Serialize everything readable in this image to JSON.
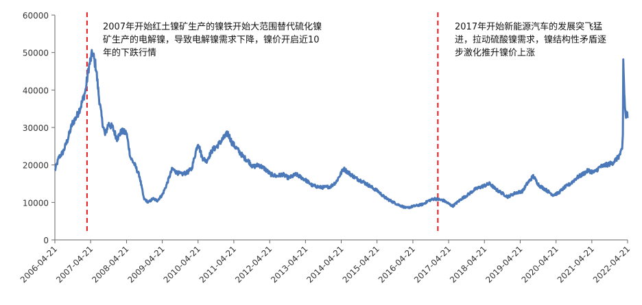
{
  "chart_data": {
    "type": "line",
    "title": "",
    "xlabel": "",
    "ylabel": "",
    "ylim": [
      0,
      60000
    ],
    "y_ticks": [
      "0",
      "10000",
      "20000",
      "30000",
      "40000",
      "50000",
      "60000"
    ],
    "x_ticks": [
      "2006-04-21",
      "2007-04-21",
      "2008-04-21",
      "2009-04-21",
      "2010-04-21",
      "2011-04-21",
      "2012-04-21",
      "2013-04-21",
      "2014-04-21",
      "2015-04-21",
      "2016-04-21",
      "2017-04-21",
      "2018-04-21",
      "2019-04-21",
      "2020-04-21",
      "2021-04-21",
      "2022-04-21"
    ],
    "grid": false,
    "series_color": "#4a78b8",
    "vline_color": "#e8141c",
    "vlines": [
      "2007-03-15",
      "2017-01-01"
    ],
    "annotations": [
      "2007年开始红土镍矿生产的镍铁开始大范围替代硫化镍矿生产的电解镍，导致电解镍需求下降，镍价开启近10年的下跌行情",
      "2017年开始新能源汽车的发展突飞猛进，拉动硫酸镍需求，镍结构性矛盾逐步激化推升镍价上涨"
    ],
    "series": [
      {
        "x": [
          "2006-04-21",
          "2006-06-01",
          "2006-07-15",
          "2006-09-01",
          "2006-10-15",
          "2006-12-01",
          "2007-01-15",
          "2007-03-01",
          "2007-04-01",
          "2007-05-10",
          "2007-06-15",
          "2007-07-15",
          "2007-08-15",
          "2007-09-15",
          "2007-10-20",
          "2007-12-01",
          "2008-01-15",
          "2008-03-01",
          "2008-04-21",
          "2008-06-01",
          "2008-07-15",
          "2008-09-01",
          "2008-10-15",
          "2008-12-01",
          "2009-01-15",
          "2009-03-01",
          "2009-04-21",
          "2009-06-01",
          "2009-08-01",
          "2009-09-15",
          "2009-11-01",
          "2010-01-01",
          "2010-02-15",
          "2010-04-21",
          "2010-06-01",
          "2010-07-15",
          "2010-09-15",
          "2010-11-01",
          "2011-01-01",
          "2011-02-20",
          "2011-04-01",
          "2011-06-01",
          "2011-08-01",
          "2011-09-20",
          "2011-11-01",
          "2012-01-01",
          "2012-03-01",
          "2012-05-01",
          "2012-07-01",
          "2012-09-01",
          "2012-11-01",
          "2013-01-15",
          "2013-04-21",
          "2013-07-01",
          "2013-10-01",
          "2014-01-01",
          "2014-03-01",
          "2014-05-15",
          "2014-07-01",
          "2014-09-15",
          "2014-12-01",
          "2015-03-01",
          "2015-05-01",
          "2015-07-01",
          "2015-09-01",
          "2015-11-15",
          "2016-02-15",
          "2016-05-01",
          "2016-08-01",
          "2016-10-01",
          "2016-12-01",
          "2017-03-01",
          "2017-06-01",
          "2017-09-01",
          "2017-11-01",
          "2018-01-15",
          "2018-04-21",
          "2018-06-15",
          "2018-08-15",
          "2018-10-15",
          "2018-12-15",
          "2019-03-01",
          "2019-05-15",
          "2019-07-01",
          "2019-09-01",
          "2019-11-01",
          "2020-01-01",
          "2020-03-20",
          "2020-05-15",
          "2020-07-15",
          "2020-09-15",
          "2020-11-15",
          "2021-01-15",
          "2021-03-15",
          "2021-05-15",
          "2021-07-15",
          "2021-09-15",
          "2021-11-15",
          "2022-01-15",
          "2022-02-25",
          "2022-03-04",
          "2022-03-08",
          "2022-03-15",
          "2022-03-25",
          "2022-04-05",
          "2022-04-14",
          "2022-04-21"
        ],
        "values": [
          18500,
          22000,
          23500,
          27000,
          31000,
          33000,
          36000,
          40000,
          46000,
          50000,
          46000,
          38000,
          32000,
          28000,
          31000,
          30000,
          27000,
          29000,
          28500,
          22000,
          20000,
          17000,
          11000,
          10000,
          11000,
          10500,
          12000,
          14500,
          19000,
          18000,
          17500,
          18000,
          19000,
          26000,
          22000,
          21000,
          24000,
          25000,
          27000,
          28500,
          26000,
          24000,
          22000,
          21000,
          19500,
          20000,
          19000,
          17500,
          17000,
          17500,
          16500,
          17500,
          16000,
          14500,
          14000,
          14200,
          15500,
          19000,
          18000,
          16500,
          15500,
          14000,
          13000,
          11500,
          10500,
          9500,
          8500,
          9000,
          9500,
          10500,
          11000,
          10500,
          9000,
          11000,
          12000,
          13500,
          14500,
          15000,
          13500,
          12500,
          11500,
          12500,
          13000,
          15000,
          17000,
          14500,
          13500,
          12000,
          12500,
          14000,
          15000,
          16500,
          17500,
          18500,
          18000,
          19500,
          20000,
          20500,
          22000,
          24000,
          28000,
          48000,
          42000,
          35000,
          33000,
          34000,
          32500
        ]
      }
    ]
  }
}
